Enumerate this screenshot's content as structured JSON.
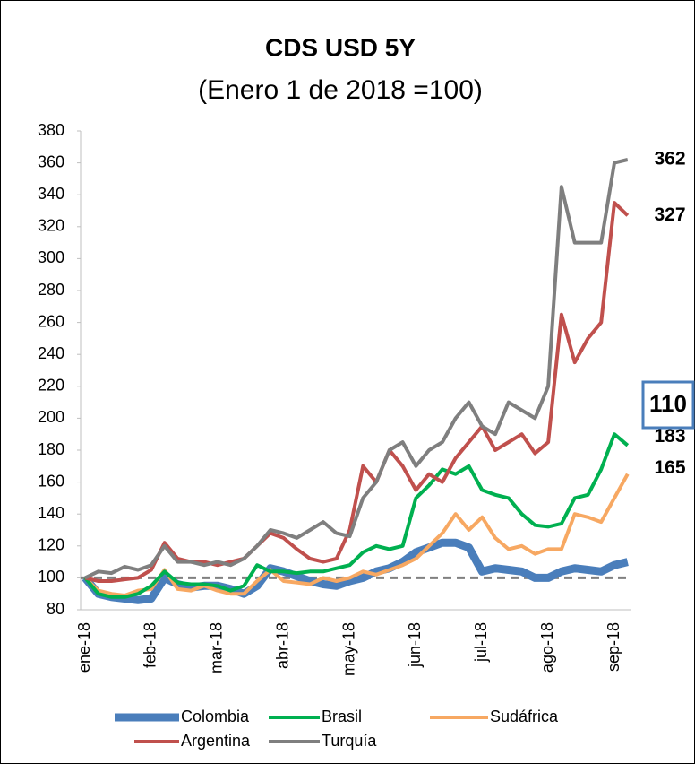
{
  "chart_data": {
    "type": "line",
    "title": "CDS USD 5Y",
    "subtitle": "(Enero 1 de 2018 =100)",
    "categories": [
      "ene-18",
      null,
      null,
      null,
      null,
      "feb-18",
      null,
      null,
      null,
      null,
      "mar-18",
      null,
      null,
      null,
      null,
      "abr-18",
      null,
      null,
      null,
      null,
      "may-18",
      null,
      null,
      null,
      null,
      "jun-18",
      null,
      null,
      null,
      null,
      "jul-18",
      null,
      null,
      null,
      null,
      "ago-18",
      null,
      null,
      null,
      null,
      "sep-18",
      null
    ],
    "series": [
      {
        "name": "Colombia",
        "color": "#4a7ebb",
        "values": [
          100,
          90,
          88,
          87,
          86,
          87,
          100,
          96,
          94,
          95,
          95,
          93,
          90,
          95,
          106,
          104,
          101,
          98,
          96,
          95,
          98,
          100,
          104,
          106,
          110,
          116,
          119,
          122,
          122,
          119,
          104,
          106,
          105,
          104,
          100,
          100,
          104,
          106,
          105,
          104,
          108,
          110
        ]
      },
      {
        "name": "Brasil",
        "color": "#00b050",
        "values": [
          100,
          90,
          88,
          88,
          90,
          95,
          104,
          97,
          96,
          96,
          95,
          92,
          95,
          108,
          104,
          104,
          103,
          104,
          104,
          106,
          108,
          116,
          120,
          118,
          120,
          150,
          158,
          168,
          165,
          170,
          155,
          152,
          150,
          140,
          133,
          132,
          134,
          150,
          152,
          168,
          190,
          183
        ]
      },
      {
        "name": "Sudáfrica",
        "color": "#f7a862",
        "values": [
          100,
          92,
          90,
          89,
          92,
          93,
          105,
          93,
          92,
          95,
          92,
          90,
          90,
          98,
          105,
          98,
          97,
          96,
          100,
          98,
          100,
          104,
          102,
          105,
          108,
          112,
          120,
          128,
          140,
          130,
          138,
          125,
          118,
          120,
          115,
          118,
          118,
          140,
          138,
          135,
          150,
          165
        ]
      },
      {
        "name": "Argentina",
        "color": "#c0504d",
        "values": [
          100,
          98,
          98,
          99,
          100,
          105,
          122,
          112,
          110,
          110,
          108,
          110,
          112,
          120,
          128,
          125,
          118,
          112,
          110,
          112,
          130,
          170,
          160,
          180,
          170,
          155,
          165,
          160,
          175,
          185,
          195,
          180,
          185,
          190,
          178,
          185,
          265,
          235,
          250,
          260,
          335,
          327
        ]
      },
      {
        "name": "Turquía",
        "color": "#7f7f7f",
        "values": [
          100,
          104,
          103,
          107,
          105,
          108,
          120,
          110,
          110,
          108,
          110,
          108,
          112,
          120,
          130,
          128,
          125,
          130,
          135,
          128,
          126,
          150,
          160,
          180,
          185,
          170,
          180,
          185,
          200,
          210,
          195,
          190,
          210,
          205,
          200,
          220,
          345,
          310,
          310,
          310,
          360,
          362
        ]
      }
    ],
    "reference_line": 100,
    "ylim": [
      80,
      380
    ],
    "yticks": [
      80,
      100,
      120,
      140,
      160,
      180,
      200,
      220,
      240,
      260,
      280,
      300,
      320,
      340,
      360,
      380
    ],
    "legend": "bottom"
  }
}
